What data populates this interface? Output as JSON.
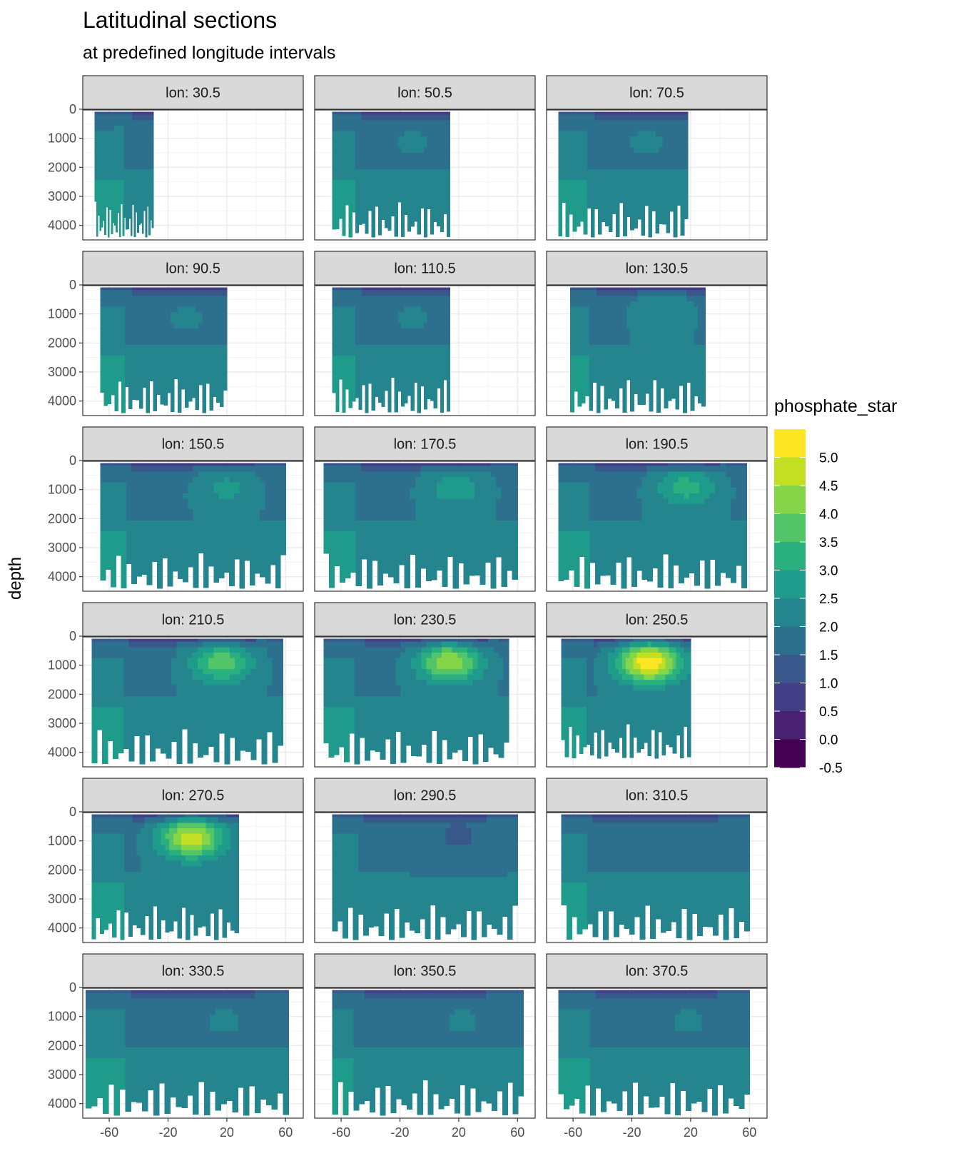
{
  "title": "Latitudinal sections",
  "subtitle": "at predefined longitude intervals",
  "chart_data": {
    "type": "heatmap",
    "title": "Latitudinal sections",
    "subtitle": "at predefined longitude intervals",
    "xlabel": "",
    "ylabel": "depth",
    "xlim": [
      -78,
      72
    ],
    "ylim": [
      0,
      4500
    ],
    "y_reversed": true,
    "x_ticks": [
      -60,
      -20,
      20,
      60
    ],
    "y_ticks": [
      0,
      1000,
      2000,
      3000,
      4000
    ],
    "grid": true,
    "legend": {
      "title": "phosphate_star",
      "position": "right",
      "breaks": [
        "5.0",
        "4.5",
        "4.0",
        "3.5",
        "3.0",
        "2.5",
        "2.0",
        "1.5",
        "1.0",
        "0.5",
        "0.0",
        "-0.5"
      ],
      "colors": [
        "#fde725",
        "#c2df23",
        "#86d549",
        "#52c569",
        "#2ab07f",
        "#1e9b8a",
        "#25858e",
        "#2d708e",
        "#38588c",
        "#433e85",
        "#482173",
        "#440154"
      ]
    },
    "panels": [
      {
        "label": "lon: 30.5",
        "x_range": [
          -70,
          -30
        ],
        "max_depth": 4400,
        "peak": 1.7
      },
      {
        "label": "lon: 50.5",
        "x_range": [
          -66,
          14
        ],
        "max_depth": 4400,
        "peak": 1.8
      },
      {
        "label": "lon: 70.5",
        "x_range": [
          -70,
          18
        ],
        "max_depth": 4400,
        "peak": 1.8
      },
      {
        "label": "lon: 90.5",
        "x_range": [
          -66,
          20
        ],
        "max_depth": 4400,
        "peak": 1.8
      },
      {
        "label": "lon: 110.5",
        "x_range": [
          -66,
          14
        ],
        "max_depth": 4400,
        "peak": 1.8
      },
      {
        "label": "lon: 130.5",
        "x_range": [
          -62,
          30
        ],
        "max_depth": 4400,
        "peak": 2.2
      },
      {
        "label": "lon: 150.5",
        "x_range": [
          -66,
          60
        ],
        "max_depth": 4400,
        "peak": 2.4
      },
      {
        "label": "lon: 170.5",
        "x_range": [
          -72,
          60
        ],
        "max_depth": 4400,
        "peak": 2.6
      },
      {
        "label": "lon: 190.5",
        "x_range": [
          -70,
          58
        ],
        "max_depth": 4400,
        "peak": 3.0
      },
      {
        "label": "lon: 210.5",
        "x_range": [
          -72,
          58
        ],
        "max_depth": 4400,
        "peak": 3.6
      },
      {
        "label": "lon: 230.5",
        "x_range": [
          -72,
          54
        ],
        "max_depth": 4400,
        "peak": 4.2
      },
      {
        "label": "lon: 250.5",
        "x_range": [
          -68,
          20
        ],
        "max_depth": 4200,
        "peak": 5.2
      },
      {
        "label": "lon: 270.5",
        "x_range": [
          -72,
          28
        ],
        "max_depth": 4400,
        "peak": 4.6
      },
      {
        "label": "lon: 290.5",
        "x_range": [
          -66,
          60
        ],
        "max_depth": 4400,
        "peak": 1.2
      },
      {
        "label": "lon: 310.5",
        "x_range": [
          -68,
          60
        ],
        "max_depth": 4400,
        "peak": 1.6
      },
      {
        "label": "lon: 330.5",
        "x_range": [
          -76,
          62
        ],
        "max_depth": 4400,
        "peak": 1.8
      },
      {
        "label": "lon: 350.5",
        "x_range": [
          -66,
          64
        ],
        "max_depth": 4400,
        "peak": 1.8
      },
      {
        "label": "lon: 370.5",
        "x_range": [
          -70,
          60
        ],
        "max_depth": 4400,
        "peak": 1.8
      }
    ]
  }
}
